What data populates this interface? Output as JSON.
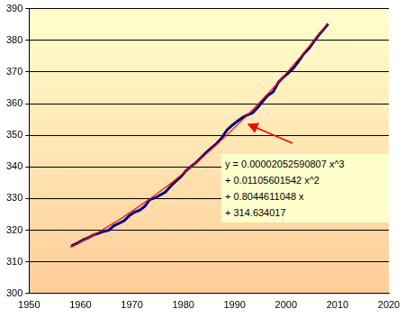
{
  "chart_data": {
    "type": "line",
    "xlim": [
      1950,
      2020
    ],
    "xticks": [
      1950,
      1960,
      1970,
      1980,
      1990,
      2000,
      2010,
      2020
    ],
    "ylim": [
      300,
      390
    ],
    "yticks": [
      300,
      310,
      320,
      330,
      340,
      350,
      360,
      370,
      380,
      390
    ],
    "grid": true,
    "annotations": [
      {
        "text": [
          "y = 0.00002052590807 x^3",
          "+ 0.01105601542 x^2",
          "+ 0.8044611048 x",
          "+ 314.634017"
        ]
      }
    ],
    "series": [
      {
        "color": "#000080",
        "line_style": "solid",
        "marker": "none",
        "x": [
          1958.2,
          1959.5,
          1960.5,
          1961.5,
          1962.5,
          1963.5,
          1964.5,
          1965.5,
          1966.5,
          1967.5,
          1968.5,
          1969.5,
          1970.5,
          1971.5,
          1972.5,
          1973.5,
          1974.5,
          1975.5,
          1976.5,
          1977.5,
          1978.5,
          1979.5,
          1980.5,
          1981.5,
          1982.5,
          1983.5,
          1984.5,
          1985.5,
          1986.5,
          1987.5,
          1988.5,
          1989.5,
          1990.5,
          1991.5,
          1992.5,
          1993.5,
          1994.5,
          1995.5,
          1996.5,
          1997.5,
          1998.5,
          1999.5,
          2000.5,
          2001.5,
          2002.5,
          2003.5,
          2004.5,
          2005.5,
          2006.5,
          2007.5,
          2008.2
        ],
        "values": [
          315.0,
          316.0,
          316.9,
          317.6,
          318.5,
          319.0,
          319.6,
          320.0,
          321.4,
          322.2,
          323.0,
          324.6,
          325.7,
          326.3,
          327.5,
          329.7,
          330.2,
          331.1,
          332.0,
          333.8,
          335.4,
          336.8,
          338.7,
          340.1,
          341.4,
          343.0,
          344.6,
          346.0,
          347.4,
          349.2,
          351.6,
          353.1,
          354.4,
          355.6,
          356.4,
          357.1,
          358.8,
          360.8,
          362.6,
          363.7,
          366.7,
          368.4,
          369.7,
          371.3,
          373.5,
          375.8,
          377.5,
          379.8,
          381.9,
          383.8,
          385.2
        ]
      },
      {
        "color": "#ff0000",
        "line_style": "solid",
        "marker": "none",
        "x": [
          1958,
          1963,
          1968,
          1973,
          1978,
          1983,
          1988,
          1993,
          1998,
          2003,
          2008
        ],
        "values": [
          314.6,
          318.9,
          323.8,
          329.3,
          335.3,
          342.0,
          349.3,
          357.2,
          365.8,
          375.1,
          385.1
        ]
      }
    ]
  }
}
